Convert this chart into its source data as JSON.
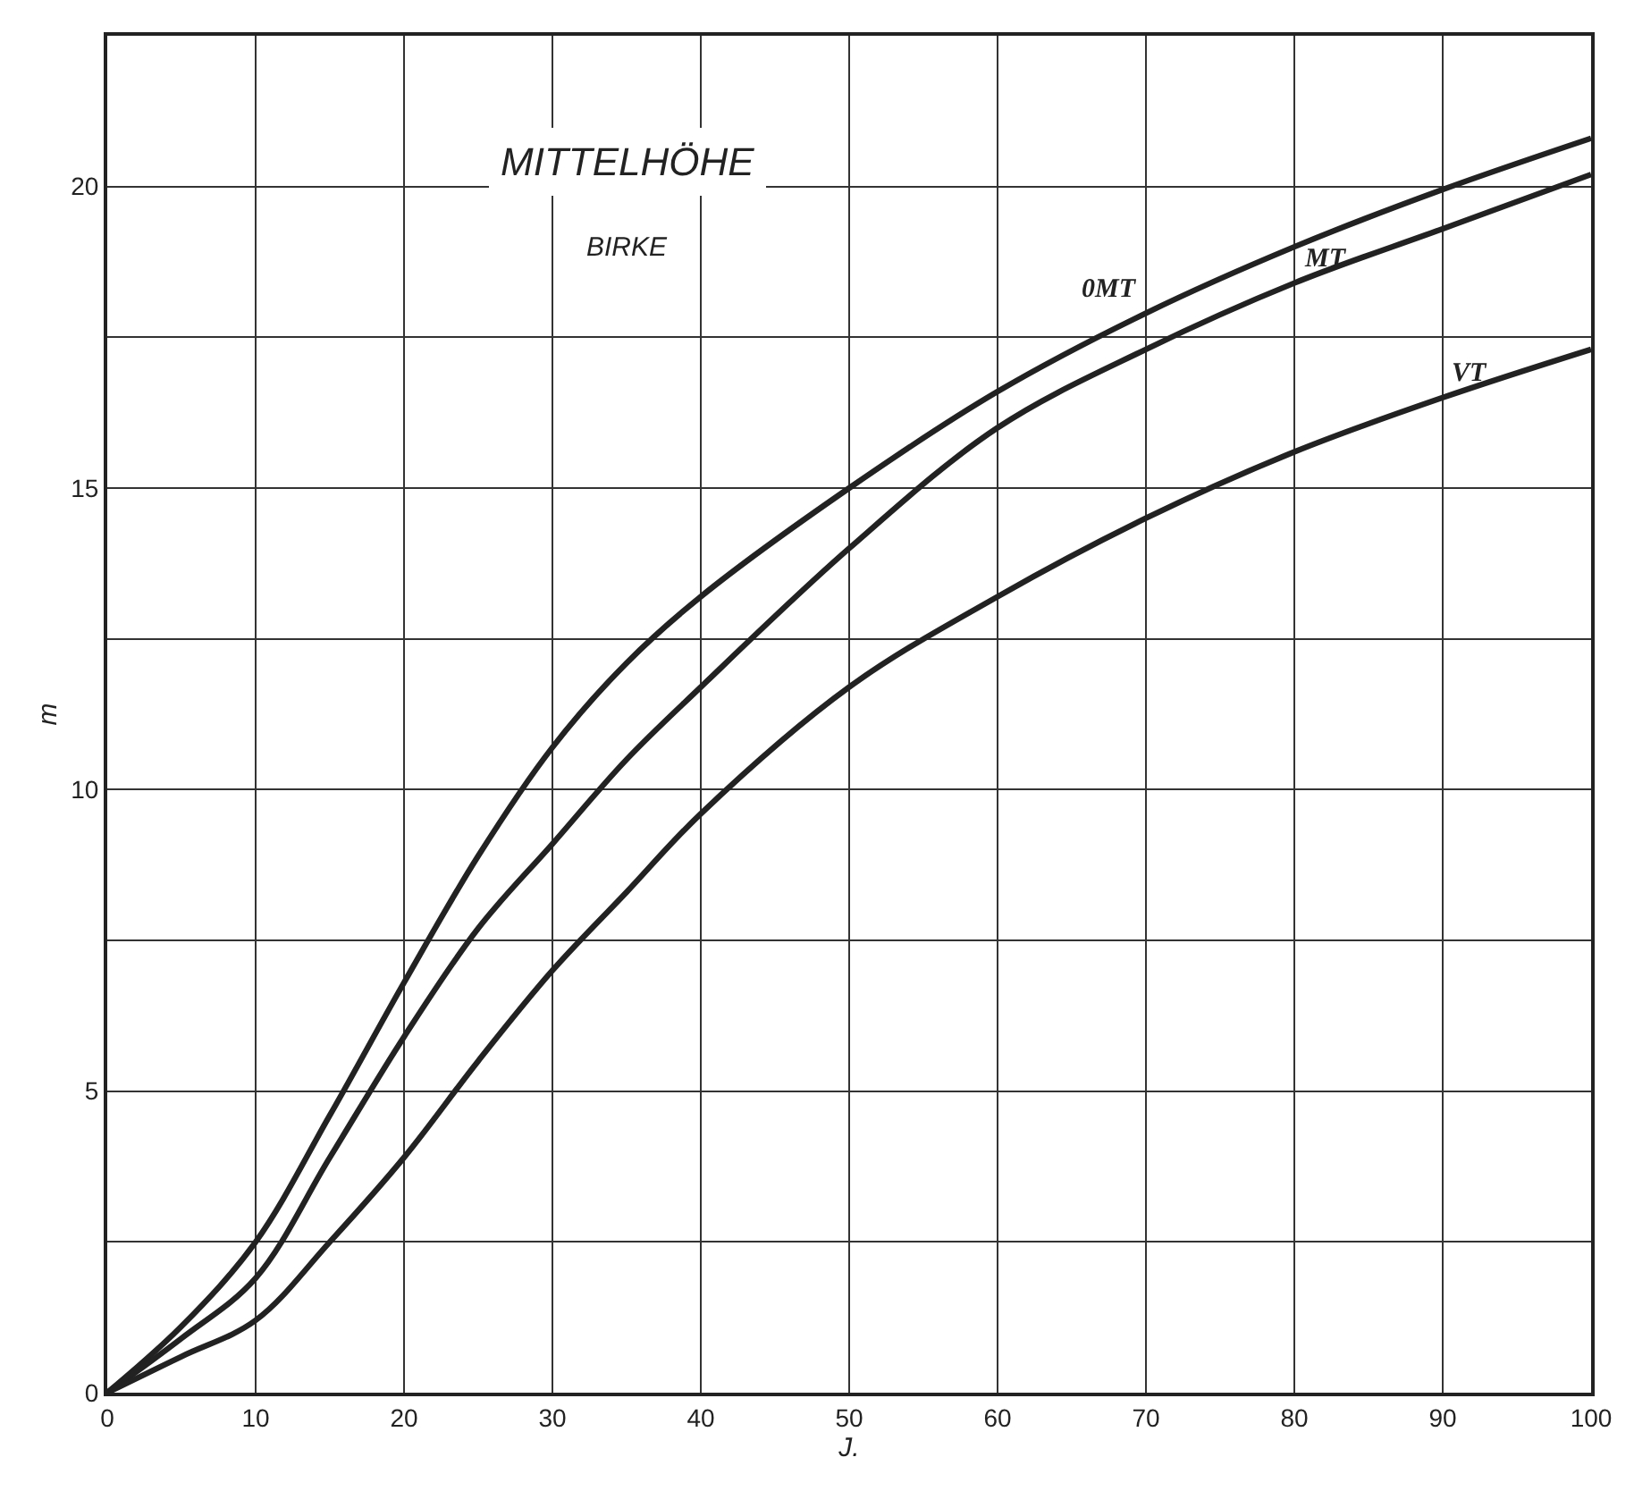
{
  "chart_data": {
    "type": "line",
    "title": "MITTELHÖHE",
    "subtitle": "BIRKE",
    "xlabel": "J.",
    "ylabel": "m",
    "x": [
      0,
      5,
      10,
      15,
      20,
      25,
      30,
      35,
      40,
      50,
      60,
      70,
      80,
      90,
      100
    ],
    "series": [
      {
        "name": "0MT",
        "color": "#222222",
        "values": [
          0,
          1.1,
          2.5,
          4.6,
          6.8,
          8.9,
          10.7,
          12.1,
          13.2,
          15.0,
          16.6,
          17.9,
          19.0,
          19.95,
          20.8
        ]
      },
      {
        "name": "MT",
        "color": "#222222",
        "values": [
          0,
          0.9,
          1.9,
          3.9,
          5.9,
          7.7,
          9.1,
          10.5,
          11.7,
          14.0,
          16.0,
          17.3,
          18.4,
          19.3,
          20.2
        ]
      },
      {
        "name": "VT",
        "color": "#222222",
        "values": [
          0,
          0.6,
          1.2,
          2.5,
          3.9,
          5.5,
          7.0,
          8.3,
          9.6,
          11.7,
          13.2,
          14.5,
          15.6,
          16.5,
          17.3
        ]
      }
    ],
    "xlim": [
      0,
      100
    ],
    "ylim": [
      0,
      22.5
    ],
    "xticks": [
      0,
      10,
      20,
      30,
      40,
      50,
      60,
      70,
      80,
      90,
      100
    ],
    "yticks": [
      0,
      {
        "value": 2.5,
        "label": null
      },
      5,
      {
        "value": 7.5,
        "label": null
      },
      10,
      {
        "value": 12.5,
        "label": null
      },
      15,
      {
        "value": 17.5,
        "label": null
      },
      20,
      {
        "value": 22.5,
        "label": null
      }
    ],
    "grid": true,
    "legend": false,
    "marker": "none",
    "line_style": "solid"
  }
}
